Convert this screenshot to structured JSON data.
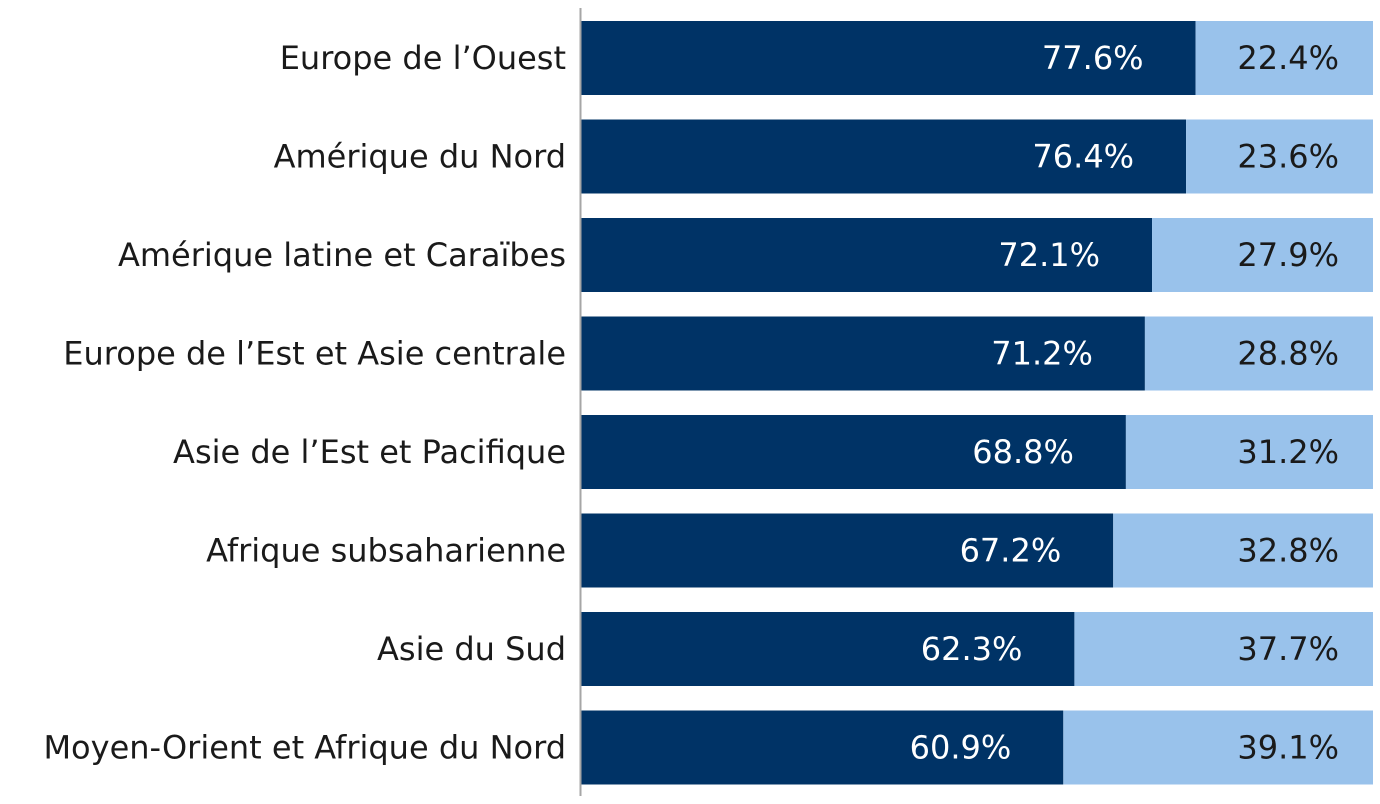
{
  "chart_data": {
    "type": "bar",
    "orientation": "horizontal",
    "stacked": true,
    "percent_stacked": true,
    "categories": [
      "Europe de l’Ouest",
      "Amérique du Nord",
      "Amérique latine et Caraïbes",
      "Europe de l’Est et Asie centrale",
      "Asie de l’Est et Pacifique ",
      "Afrique subsaharienne",
      "Asie du Sud",
      "Moyen-Orient et Afrique du Nord"
    ],
    "series": [
      {
        "values": [
          77.6,
          76.4,
          72.1,
          71.2,
          68.8,
          67.2,
          62.3,
          60.9
        ],
        "labels": [
          "77.6%",
          "76.4%",
          "72.1%",
          "71.2%",
          "68.8%",
          "67.2%",
          "62.3%",
          "60.9%"
        ],
        "color": "#003366",
        "label_color": "#ffffff"
      },
      {
        "values": [
          22.4,
          23.6,
          27.9,
          28.8,
          31.2,
          32.8,
          37.7,
          39.1
        ],
        "labels": [
          "22.4%",
          "23.6%",
          "27.9%",
          "28.8%",
          "31.2%",
          "32.8%",
          "37.7%",
          "39.1%"
        ],
        "color": "#99c2eb",
        "label_color": "#1a1a1a"
      }
    ],
    "xlim": [
      0,
      100
    ],
    "grid": false,
    "legend": "none",
    "title": "",
    "xlabel": "",
    "ylabel": ""
  }
}
